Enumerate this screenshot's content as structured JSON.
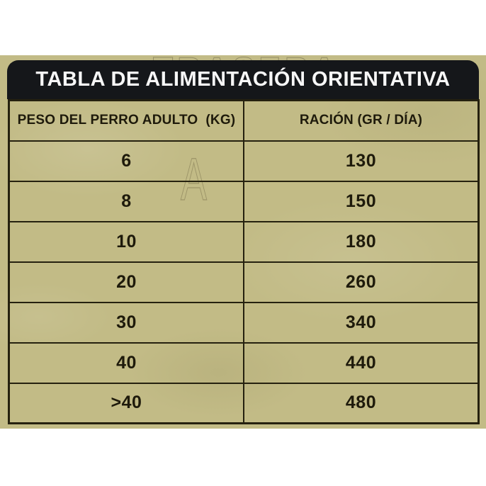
{
  "title": "TABLA DE ALIMENTACIÓN ORIENTATIVA",
  "watermark": {
    "top_text": "TRASERA",
    "letter": "A"
  },
  "table": {
    "headers": [
      "PESO DEL PERRO ADULTO  (KG)",
      "RACIÓN (GR / DÍA)"
    ],
    "rows": [
      [
        "6",
        "130"
      ],
      [
        "8",
        "150"
      ],
      [
        "10",
        "180"
      ],
      [
        "20",
        "260"
      ],
      [
        "30",
        "340"
      ],
      [
        "40",
        "440"
      ],
      [
        ">40",
        "480"
      ]
    ]
  },
  "colors": {
    "panel_background": "#c2bb86",
    "title_bar": "#15171a",
    "title_text": "#f7f7f7",
    "table_border": "#25210f",
    "cell_text": "#1e1a0b"
  },
  "chart_data": {
    "type": "table",
    "title": "TABLA DE ALIMENTACIÓN ORIENTATIVA",
    "columns": [
      "PESO DEL PERRO ADULTO (KG)",
      "RACIÓN (GR / DÍA)"
    ],
    "rows": [
      [
        "6",
        130
      ],
      [
        "8",
        150
      ],
      [
        "10",
        180
      ],
      [
        "20",
        260
      ],
      [
        "30",
        340
      ],
      [
        "40",
        440
      ],
      [
        ">40",
        480
      ]
    ]
  }
}
